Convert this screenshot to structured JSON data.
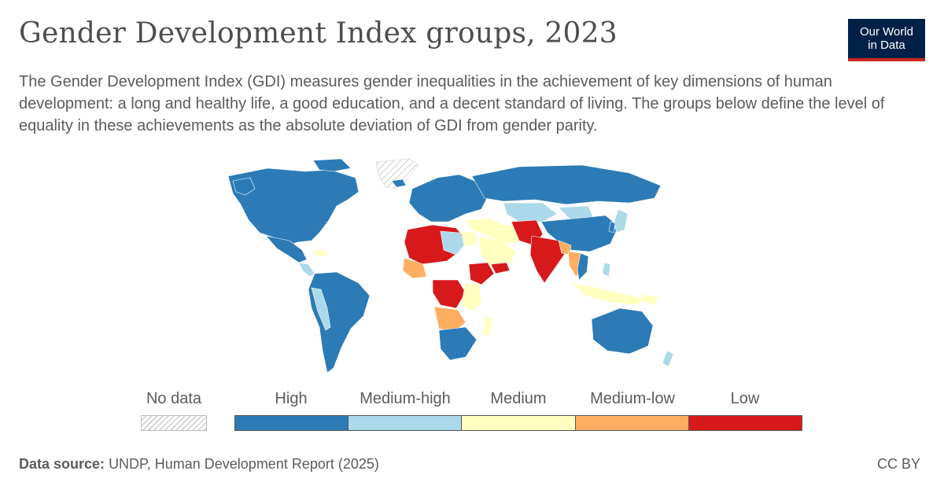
{
  "header": {
    "title": "Gender Development Index groups, 2023",
    "subtitle": "The Gender Development Index (GDI) measures gender inequalities in the achievement of key dimensions of human development: a long and healthy life, a good education, and a decent standard of living. The groups below define the level of equality in these achievements as the absolute deviation of GDI from gender parity."
  },
  "logo": {
    "line1": "Our World",
    "line2": "in Data"
  },
  "legend": {
    "no_data_label": "No data",
    "bins": [
      {
        "label": "High",
        "color": "#2c7bb6"
      },
      {
        "label": "Medium-high",
        "color": "#abd9e9"
      },
      {
        "label": "Medium",
        "color": "#ffffbf"
      },
      {
        "label": "Medium-low",
        "color": "#fdae61"
      },
      {
        "label": "Low",
        "color": "#d7191c"
      }
    ]
  },
  "footer": {
    "source_label": "Data source:",
    "source_text": "UNDP, Human Development Report (2025)",
    "license": "CC BY"
  }
}
